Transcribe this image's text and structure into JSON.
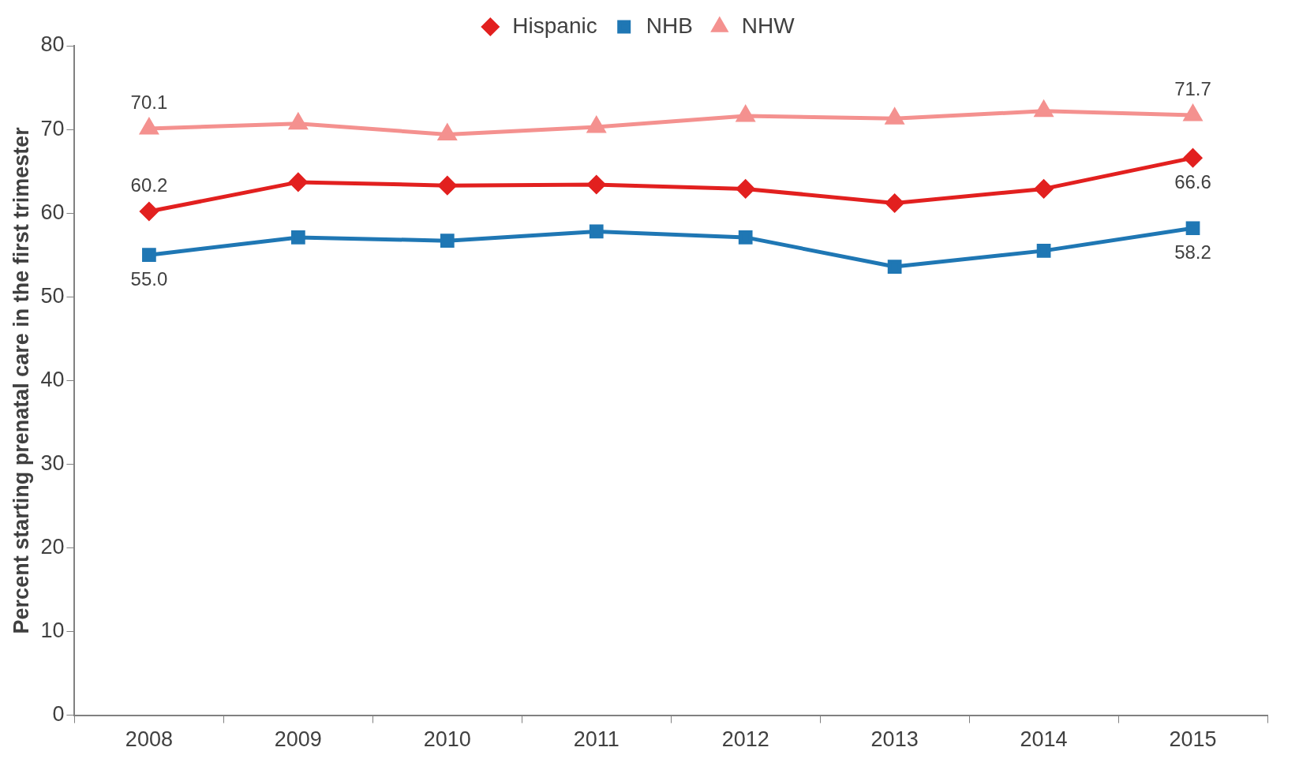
{
  "chart_data": {
    "type": "line",
    "ylabel": "Percent starting prenatal care in the first trimester",
    "categories": [
      "2008",
      "2009",
      "2010",
      "2011",
      "2012",
      "2013",
      "2014",
      "2015"
    ],
    "series": [
      {
        "name": "Hispanic",
        "color": "#e2201f",
        "marker": "diamond",
        "values": [
          60.2,
          63.7,
          63.3,
          63.4,
          62.9,
          61.2,
          62.9,
          66.6
        ],
        "value_labels": [
          "60.2",
          null,
          null,
          null,
          null,
          null,
          null,
          "66.6"
        ]
      },
      {
        "name": "NHB",
        "color": "#1f77b4",
        "marker": "square",
        "values": [
          55.0,
          57.1,
          56.7,
          57.8,
          57.1,
          53.6,
          55.5,
          58.2
        ],
        "value_labels": [
          "55.0",
          null,
          null,
          null,
          null,
          null,
          null,
          "58.2"
        ]
      },
      {
        "name": "NHW",
        "color": "#f4918f",
        "marker": "triangle",
        "values": [
          70.1,
          70.7,
          69.4,
          70.3,
          71.6,
          71.3,
          72.2,
          71.7
        ],
        "value_labels": [
          "70.1",
          null,
          null,
          null,
          null,
          null,
          null,
          "71.7"
        ]
      }
    ],
    "ylim": [
      0,
      80
    ],
    "yticks": [
      0,
      10,
      20,
      30,
      40,
      50,
      60,
      70,
      80
    ],
    "grid": false,
    "legend": "top",
    "line_style": "solid"
  }
}
